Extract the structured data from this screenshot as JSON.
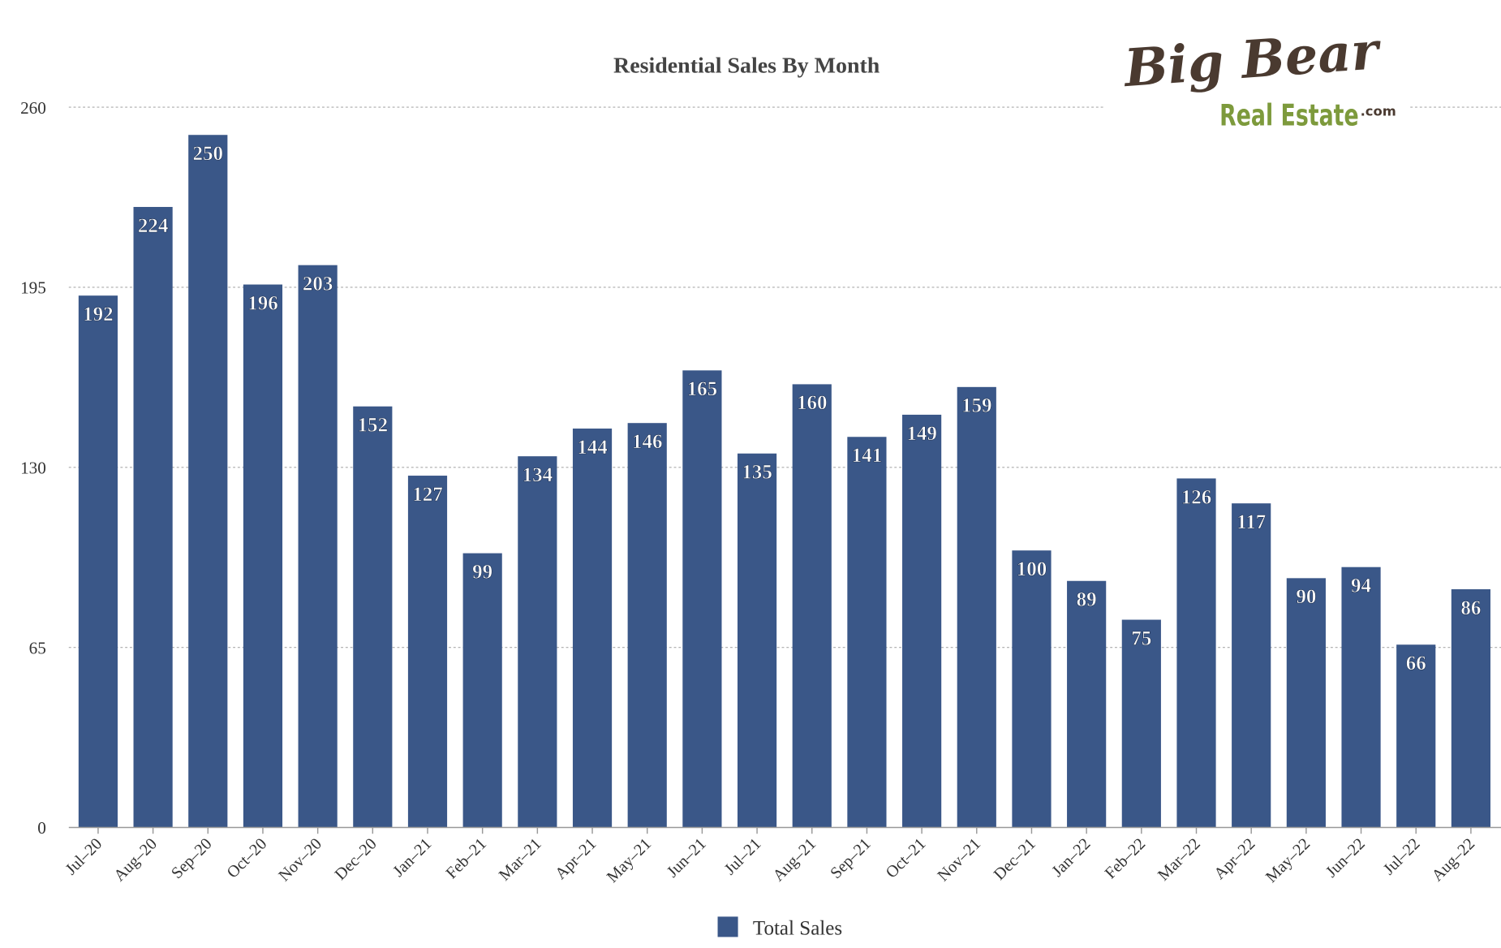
{
  "chart_data": {
    "type": "bar",
    "title": "Residential Sales By Month",
    "categories": [
      "Jul–20",
      "Aug–20",
      "Sep–20",
      "Oct–20",
      "Nov–20",
      "Dec–20",
      "Jan–21",
      "Feb–21",
      "Mar–21",
      "Apr–21",
      "May–21",
      "Jun–21",
      "Jul–21",
      "Aug–21",
      "Sep–21",
      "Oct–21",
      "Nov–21",
      "Dec–21",
      "Jan–22",
      "Feb–22",
      "Mar–22",
      "Apr–22",
      "May–22",
      "Jun–22",
      "Jul–22",
      "Aug–22"
    ],
    "series": [
      {
        "name": "Total Sales",
        "color": "#3a5788",
        "values": [
          192,
          224,
          250,
          196,
          203,
          152,
          127,
          99,
          134,
          144,
          146,
          165,
          135,
          160,
          141,
          149,
          159,
          100,
          89,
          75,
          126,
          117,
          90,
          94,
          66,
          86
        ]
      }
    ],
    "yticks": [
      0,
      65,
      130,
      195,
      260
    ],
    "ylim": [
      0,
      260
    ],
    "grid": true,
    "legend": "bottom-center",
    "xlabel": "",
    "ylabel": ""
  },
  "logo": {
    "line1": "Big Bear",
    "line2": "Real Estate",
    "suffix": ".com",
    "color_brown": "#4a3a30",
    "color_green": "#7d9a3c"
  }
}
